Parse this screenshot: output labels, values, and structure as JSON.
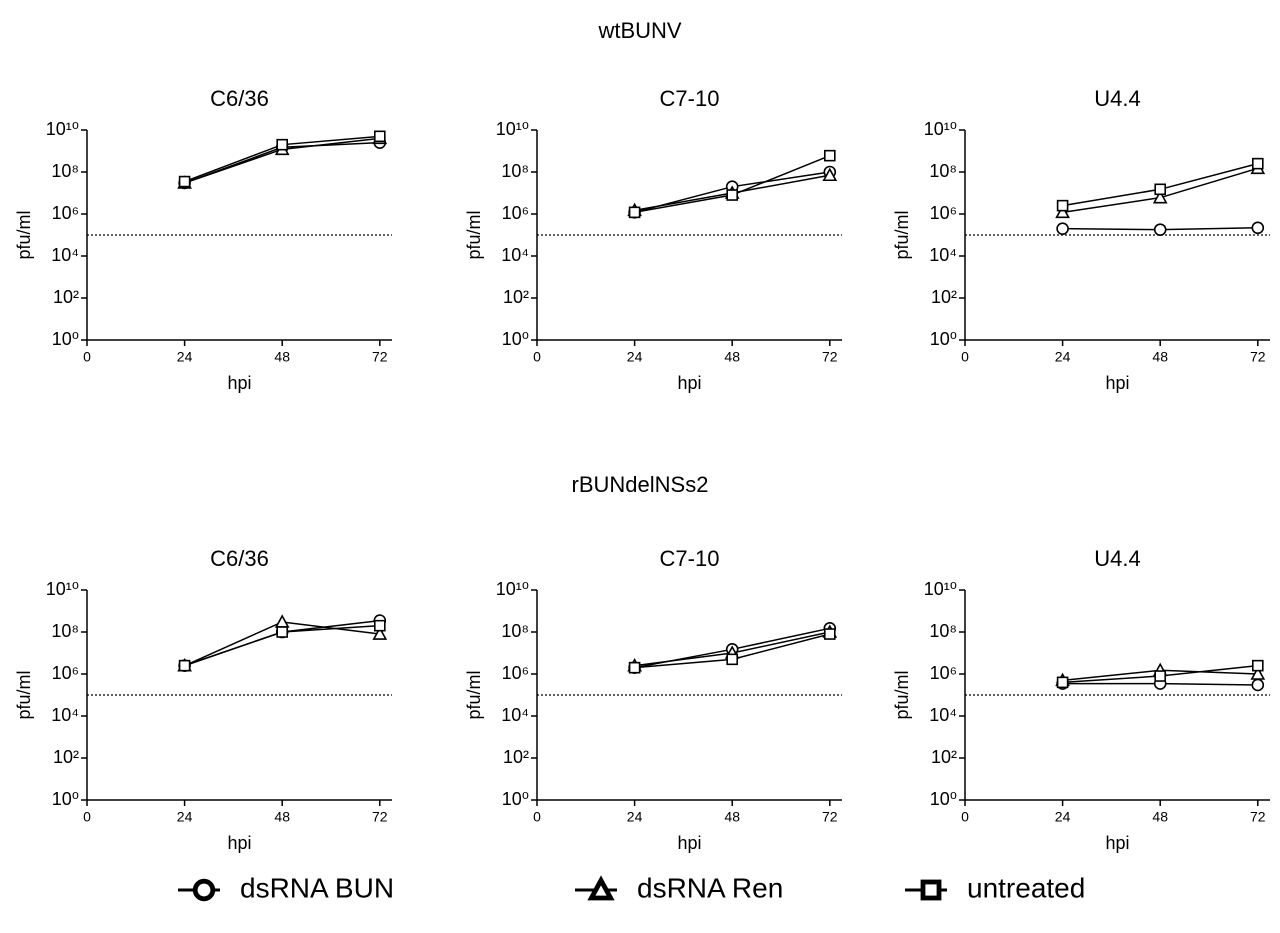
{
  "groups": [
    "wtBUNV",
    "rBUNdelNSs2"
  ],
  "legend": [
    {
      "name": "dsRNA BUN",
      "marker": "circle"
    },
    {
      "name": "dsRNA Ren",
      "marker": "triangle"
    },
    {
      "name": "untreated",
      "marker": "square"
    }
  ],
  "chart_data": [
    {
      "type": "line",
      "title": "C6/36",
      "x_label": "hpi",
      "y_label": "pfu/ml",
      "log_y": true,
      "x": [
        24,
        48,
        72
      ],
      "limit_line": 100000,
      "xlim": [
        0,
        75
      ],
      "xticks": [
        0,
        24,
        48,
        72
      ],
      "ylim": [
        1,
        10000000000
      ],
      "yticks": [
        {
          "value": 1,
          "label": "10⁰"
        },
        {
          "value": 100,
          "label": "10²"
        },
        {
          "value": 10000,
          "label": "10⁴"
        },
        {
          "value": 1000000,
          "label": "10⁶"
        },
        {
          "value": 100000000,
          "label": "10⁸"
        },
        {
          "value": 10000000000,
          "label": "10¹⁰"
        }
      ],
      "series": [
        {
          "marker": "circle",
          "values": [
            30000000,
            1500000000,
            2500000000
          ]
        },
        {
          "marker": "triangle",
          "values": [
            30000000,
            1200000000,
            4000000000
          ]
        },
        {
          "marker": "square",
          "values": [
            35000000,
            2000000000,
            5000000000
          ]
        }
      ]
    },
    {
      "type": "line",
      "title": "C7-10",
      "x_label": "hpi",
      "y_label": "pfu/ml",
      "log_y": true,
      "x": [
        24,
        48,
        72
      ],
      "limit_line": 100000,
      "xlim": [
        0,
        75
      ],
      "xticks": [
        0,
        24,
        48,
        72
      ],
      "ylim": [
        1,
        10000000000
      ],
      "yticks": [
        {
          "value": 1,
          "label": "10⁰"
        },
        {
          "value": 100,
          "label": "10²"
        },
        {
          "value": 10000,
          "label": "10⁴"
        },
        {
          "value": 1000000,
          "label": "10⁶"
        },
        {
          "value": 100000000,
          "label": "10⁸"
        },
        {
          "value": 10000000000,
          "label": "10¹⁰"
        }
      ],
      "series": [
        {
          "marker": "circle",
          "values": [
            1200000,
            20000000,
            100000000
          ]
        },
        {
          "marker": "triangle",
          "values": [
            1500000,
            10000000,
            70000000
          ]
        },
        {
          "marker": "square",
          "values": [
            1200000,
            8000000,
            600000000
          ]
        }
      ]
    },
    {
      "type": "line",
      "title": "U4.4",
      "x_label": "hpi",
      "y_label": "pfu/ml",
      "log_y": true,
      "x": [
        24,
        48,
        72
      ],
      "limit_line": 100000,
      "xlim": [
        0,
        75
      ],
      "xticks": [
        0,
        24,
        48,
        72
      ],
      "ylim": [
        1,
        10000000000
      ],
      "yticks": [
        {
          "value": 1,
          "label": "10⁰"
        },
        {
          "value": 100,
          "label": "10²"
        },
        {
          "value": 10000,
          "label": "10⁴"
        },
        {
          "value": 1000000,
          "label": "10⁶"
        },
        {
          "value": 100000000,
          "label": "10⁸"
        },
        {
          "value": 10000000000,
          "label": "10¹⁰"
        }
      ],
      "series": [
        {
          "marker": "circle",
          "values": [
            200000,
            180000,
            220000
          ]
        },
        {
          "marker": "triangle",
          "values": [
            1200000,
            6000000,
            150000000
          ]
        },
        {
          "marker": "square",
          "values": [
            2500000,
            15000000,
            250000000
          ]
        }
      ]
    },
    {
      "type": "line",
      "title": "C6/36",
      "x_label": "hpi",
      "y_label": "pfu/ml",
      "log_y": true,
      "x": [
        24,
        48,
        72
      ],
      "limit_line": 100000,
      "xlim": [
        0,
        75
      ],
      "xticks": [
        0,
        24,
        48,
        72
      ],
      "ylim": [
        1,
        10000000000
      ],
      "yticks": [
        {
          "value": 1,
          "label": "10⁰"
        },
        {
          "value": 100,
          "label": "10²"
        },
        {
          "value": 10000,
          "label": "10⁴"
        },
        {
          "value": 1000000,
          "label": "10⁶"
        },
        {
          "value": 100000000,
          "label": "10⁸"
        },
        {
          "value": 10000000000,
          "label": "10¹⁰"
        }
      ],
      "series": [
        {
          "marker": "circle",
          "values": [
            2500000,
            100000000,
            350000000
          ]
        },
        {
          "marker": "triangle",
          "values": [
            2500000,
            300000000,
            80000000
          ]
        },
        {
          "marker": "square",
          "values": [
            2500000,
            100000000,
            200000000
          ]
        }
      ]
    },
    {
      "type": "line",
      "title": "C7-10",
      "x_label": "hpi",
      "y_label": "pfu/ml",
      "log_y": true,
      "x": [
        24,
        48,
        72
      ],
      "limit_line": 100000,
      "xlim": [
        0,
        75
      ],
      "xticks": [
        0,
        24,
        48,
        72
      ],
      "ylim": [
        1,
        10000000000
      ],
      "yticks": [
        {
          "value": 1,
          "label": "10⁰"
        },
        {
          "value": 100,
          "label": "10²"
        },
        {
          "value": 10000,
          "label": "10⁴"
        },
        {
          "value": 1000000,
          "label": "10⁶"
        },
        {
          "value": 100000000,
          "label": "10⁸"
        },
        {
          "value": 10000000000,
          "label": "10¹⁰"
        }
      ],
      "series": [
        {
          "marker": "circle",
          "values": [
            2000000,
            15000000,
            150000000
          ]
        },
        {
          "marker": "triangle",
          "values": [
            2500000,
            10000000,
            100000000
          ]
        },
        {
          "marker": "square",
          "values": [
            2000000,
            5000000,
            80000000
          ]
        }
      ]
    },
    {
      "type": "line",
      "title": "U4.4",
      "x_label": "hpi",
      "y_label": "pfu/ml",
      "log_y": true,
      "x": [
        24,
        48,
        72
      ],
      "limit_line": 100000,
      "xlim": [
        0,
        75
      ],
      "xticks": [
        0,
        24,
        48,
        72
      ],
      "ylim": [
        1,
        10000000000
      ],
      "yticks": [
        {
          "value": 1,
          "label": "10⁰"
        },
        {
          "value": 100,
          "label": "10²"
        },
        {
          "value": 10000,
          "label": "10⁴"
        },
        {
          "value": 1000000,
          "label": "10⁶"
        },
        {
          "value": 100000000,
          "label": "10⁸"
        },
        {
          "value": 10000000000,
          "label": "10¹⁰"
        }
      ],
      "series": [
        {
          "marker": "circle",
          "values": [
            350000,
            350000,
            300000
          ]
        },
        {
          "marker": "triangle",
          "values": [
            500000,
            1500000,
            1000000
          ]
        },
        {
          "marker": "square",
          "values": [
            400000,
            800000,
            2500000
          ]
        }
      ]
    }
  ]
}
